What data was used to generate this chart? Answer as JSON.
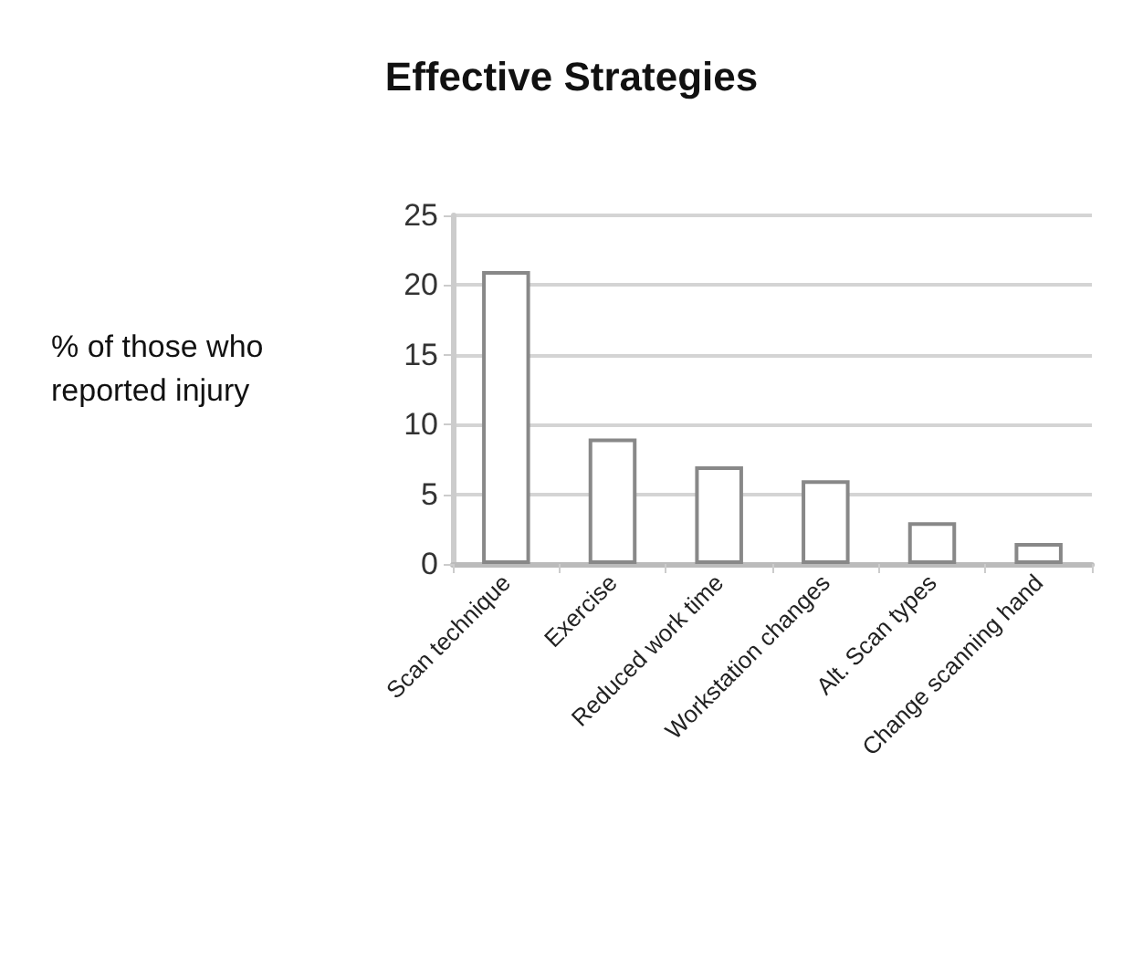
{
  "chart_data": {
    "type": "bar",
    "title": "Effective Strategies",
    "ylabel": "% of those who reported injury",
    "categories": [
      "Scan technique",
      "Exercise",
      "Reduced work time",
      "Workstation changes",
      "Alt. Scan types",
      "Change scanning hand"
    ],
    "values": [
      21,
      9,
      7,
      6,
      3,
      1.5
    ],
    "color": "#ffffff",
    "ylim": [
      0,
      25
    ],
    "yticks": [
      0,
      5,
      10,
      15,
      20,
      25
    ],
    "grid": "y"
  }
}
